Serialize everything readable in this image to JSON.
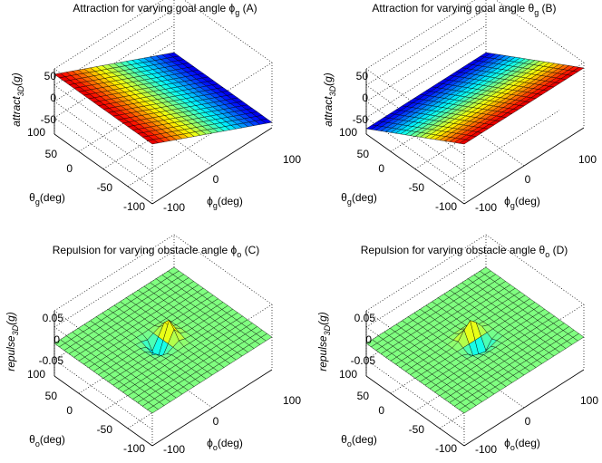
{
  "figure": {
    "background": "#ffffff",
    "axis_color": "#000000",
    "mesh_edge_color": "#000000",
    "colormap": "jet",
    "grid": true,
    "view": "3d-oblique"
  },
  "chart_data": [
    {
      "type": "surface",
      "title": "Attraction for varying goal angle ϕg (A)",
      "title_main": "Attraction for varying goal angle ϕ",
      "title_sub": "g",
      "title_tail": " (A)",
      "xlabel_main": "ϕ",
      "xlabel_sub": "g",
      "xlabel_tail": "(deg)",
      "ylabel_main": "θ",
      "ylabel_sub": "g",
      "ylabel_tail": "(deg)",
      "zlabel_main": "attract",
      "zlabel_sub": "3D",
      "zlabel_tail": "(g)",
      "x_ticks": [
        "-100",
        "0",
        "100"
      ],
      "y_ticks": [
        "-100",
        "-50",
        "0",
        "50",
        "100"
      ],
      "z_ticks": [
        "50",
        "0",
        "-50"
      ],
      "xlim": [
        -100,
        100
      ],
      "ylim": [
        -100,
        100
      ],
      "zlim": [
        -60,
        60
      ],
      "varying_axis": "x",
      "z_at_x_min": 50,
      "z_at_x_max": -50,
      "grid_lines": 21
    },
    {
      "type": "surface",
      "title": "Attraction for varying goal angle θg (B)",
      "title_main": "Attraction for varying goal angle θ",
      "title_sub": "g",
      "title_tail": " (B)",
      "xlabel_main": "ϕ",
      "xlabel_sub": "g",
      "xlabel_tail": "(deg)",
      "ylabel_main": "θ",
      "ylabel_sub": "g",
      "ylabel_tail": "(deg)",
      "zlabel_main": "attract",
      "zlabel_sub": "3D",
      "zlabel_tail": "(g)",
      "x_ticks": [
        "-100",
        "0",
        "100"
      ],
      "y_ticks": [
        "-100",
        "-50",
        "0",
        "50",
        "100"
      ],
      "z_ticks": [
        "50",
        "0",
        "-50"
      ],
      "xlim": [
        -100,
        100
      ],
      "ylim": [
        -100,
        100
      ],
      "zlim": [
        -60,
        60
      ],
      "varying_axis": "y",
      "z_at_y_min": 50,
      "z_at_y_max": -50,
      "grid_lines": 21
    },
    {
      "type": "surface",
      "title": "Repulsion for varying obstacle angle ϕo (C)",
      "title_main": "Repulsion for varying obstacle angle ϕ",
      "title_sub": "o",
      "title_tail": " (C)",
      "xlabel_main": "ϕ",
      "xlabel_sub": "o",
      "xlabel_tail": "(deg)",
      "ylabel_main": "θ",
      "ylabel_sub": "o",
      "ylabel_tail": "(deg)",
      "zlabel_main": "repulse",
      "zlabel_sub": "3D",
      "zlabel_tail": "(g)",
      "x_ticks": [
        "-100",
        "0",
        "100"
      ],
      "y_ticks": [
        "-100",
        "-50",
        "0",
        "50",
        "100"
      ],
      "z_ticks": [
        "0.05",
        "0",
        "-0.05"
      ],
      "xlim": [
        -100,
        100
      ],
      "ylim": [
        -100,
        100
      ],
      "zlim": [
        -0.06,
        0.06
      ],
      "varying_axis": "x",
      "peak_center": [
        0,
        0
      ],
      "peak_amplitude": 0.05,
      "peak_width": 15,
      "grid_lines": 21
    },
    {
      "type": "surface",
      "title": "Repulsion for varying obstacle angle θo (D)",
      "title_main": "Repulsion for varying obstacle angle θ",
      "title_sub": "o",
      "title_tail": " (D)",
      "xlabel_main": "ϕ",
      "xlabel_sub": "o",
      "xlabel_tail": "(deg)",
      "ylabel_main": "θ",
      "ylabel_sub": "o",
      "ylabel_tail": "(deg)",
      "zlabel_main": "repulse",
      "zlabel_sub": "3D",
      "zlabel_tail": "(g)",
      "x_ticks": [
        "-100",
        "0",
        "100"
      ],
      "y_ticks": [
        "-100",
        "-50",
        "0",
        "50",
        "100"
      ],
      "z_ticks": [
        "0.05",
        "0",
        "-0.05"
      ],
      "xlim": [
        -100,
        100
      ],
      "ylim": [
        -100,
        100
      ],
      "zlim": [
        -0.06,
        0.06
      ],
      "varying_axis": "y",
      "peak_center": [
        0,
        0
      ],
      "peak_amplitude": 0.05,
      "peak_width": 15,
      "grid_lines": 21
    }
  ]
}
